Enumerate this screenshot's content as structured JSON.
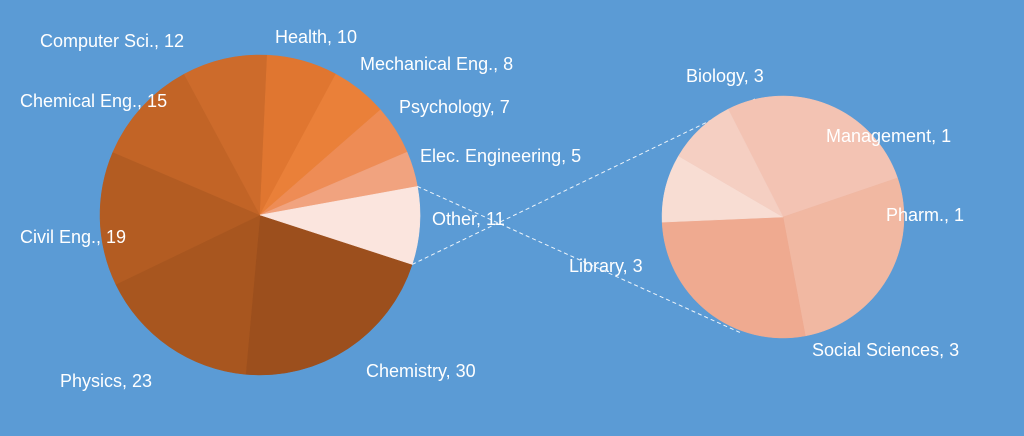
{
  "chart_data": {
    "type": "pie",
    "title": "",
    "background": "#5b9bd5",
    "main": {
      "slices": [
        {
          "label": "Chemistry, 30",
          "value": 30,
          "color": "#9c4f1d"
        },
        {
          "label": "Physics, 23",
          "value": 23,
          "color": "#a8561f"
        },
        {
          "label": "Civil Eng., 19",
          "value": 19,
          "color": "#b35c22"
        },
        {
          "label": "Chemical Eng., 15",
          "value": 15,
          "color": "#c26426"
        },
        {
          "label": "Computer Sci., 12",
          "value": 12,
          "color": "#cd6b2b"
        },
        {
          "label": "Health, 10",
          "value": 10,
          "color": "#e07630"
        },
        {
          "label": "Mechanical Eng., 8",
          "value": 8,
          "color": "#ea8039"
        },
        {
          "label": "Psychology, 7",
          "value": 7,
          "color": "#ee8c55"
        },
        {
          "label": "Elec. Engineering, 5",
          "value": 5,
          "color": "#f1a37f"
        },
        {
          "label": "Other, 11",
          "value": 11,
          "color": "#fbe5de"
        }
      ]
    },
    "breakout": {
      "of": "Other, 11",
      "slices": [
        {
          "label": "Biology, 3",
          "value": 3,
          "color": "#f3c3b3"
        },
        {
          "label": "Library, 3",
          "value": 3,
          "color": "#f1b8a2"
        },
        {
          "label": "Social Sciences, 3",
          "value": 3,
          "color": "#efaa90"
        },
        {
          "label": "Pharm., 1",
          "value": 1,
          "color": "#f8ddd3"
        },
        {
          "label": "Management, 1",
          "value": 1,
          "color": "#f5cfc2"
        }
      ]
    }
  }
}
